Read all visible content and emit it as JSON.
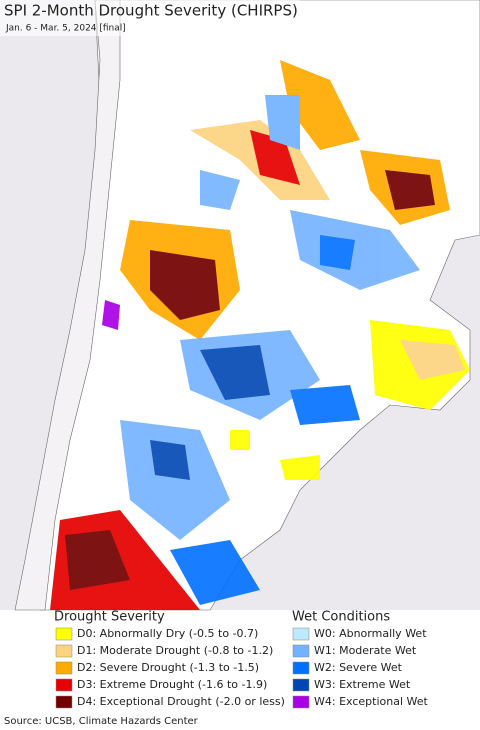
{
  "header": {
    "title": "SPI 2-Month Drought Severity (CHIRPS)",
    "subtitle": "Jan. 6 - Mar. 5, 2024 [final]"
  },
  "legend": {
    "drought": {
      "title": "Drought Severity",
      "items": [
        {
          "label": "D0: Abnormally Dry (-0.5 to -0.7)",
          "color": "#ffff00"
        },
        {
          "label": "D1: Moderate Drought (-0.8 to -1.2)",
          "color": "#fcd37f"
        },
        {
          "label": "D2: Severe Drought (-1.3 to -1.5)",
          "color": "#ffaa00"
        },
        {
          "label": "D3: Extreme Drought (-1.6 to -1.9)",
          "color": "#e60000"
        },
        {
          "label": "D4: Exceptional Drought (-2.0 or less)",
          "color": "#730000"
        }
      ]
    },
    "wet": {
      "title": "Wet Conditions",
      "items": [
        {
          "label": "W0: Abnormally Wet",
          "color": "#bee8ff"
        },
        {
          "label": "W1: Moderate Wet",
          "color": "#73b2ff"
        },
        {
          "label": "W2: Severe Wet",
          "color": "#0070ff"
        },
        {
          "label": "W3: Extreme Wet",
          "color": "#0046b4"
        },
        {
          "label": "W4: Exceptional Wet",
          "color": "#a900e6"
        }
      ]
    }
  },
  "footer": {
    "source": "Source: UCSB, Climate Hazards Center"
  }
}
